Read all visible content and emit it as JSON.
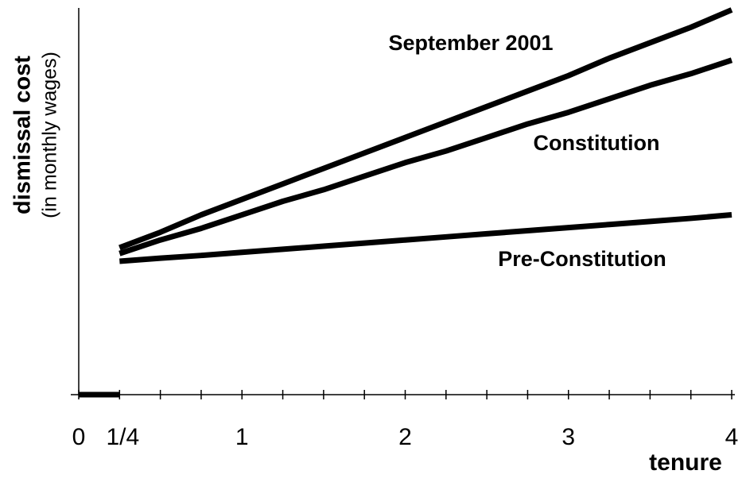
{
  "chart_data": {
    "type": "line",
    "x_label": "tenure",
    "y_label": [
      "dismissal cost",
      "(in monthly wages)"
    ],
    "x": [
      0.25,
      0.5,
      0.75,
      1,
      1.25,
      1.5,
      1.75,
      2,
      2.25,
      2.5,
      2.75,
      3,
      3.25,
      3.5,
      3.75,
      4
    ],
    "series": [
      {
        "name": "September 2001",
        "color": "#000000",
        "values": [
          38,
          42,
          46.5,
          50.5,
          54.5,
          58.5,
          62.5,
          66.5,
          70.5,
          74.5,
          78.5,
          82.5,
          87,
          91,
          95,
          99.5
        ]
      },
      {
        "name": "Constitution",
        "color": "#000000",
        "values": [
          36.5,
          40,
          43,
          46.5,
          50,
          53,
          56.5,
          60,
          63,
          66.5,
          70,
          73,
          76.5,
          80,
          83,
          86.5
        ]
      },
      {
        "name": "Pre-Constitution",
        "color": "#000000",
        "values": [
          34.5,
          35.3,
          36,
          36.8,
          37.6,
          38.4,
          39.2,
          40,
          40.8,
          41.6,
          42.4,
          43.2,
          44,
          44.8,
          45.6,
          46.5
        ]
      }
    ],
    "initial_segment": {
      "x": [
        0,
        0.25
      ],
      "values": [
        0,
        0
      ]
    },
    "xlim": [
      0,
      4
    ],
    "ylim": [
      0,
      100
    ],
    "xticks": [
      0,
      {
        "value": 0.25,
        "label": "1/4"
      },
      1,
      2,
      3,
      4
    ],
    "xticks_minor": [
      0,
      0.25,
      0.5,
      0.75,
      1,
      1.25,
      1.5,
      1.75,
      2,
      2.25,
      2.5,
      2.75,
      3,
      3.25,
      3.5,
      3.75,
      4
    ],
    "grid": false
  }
}
